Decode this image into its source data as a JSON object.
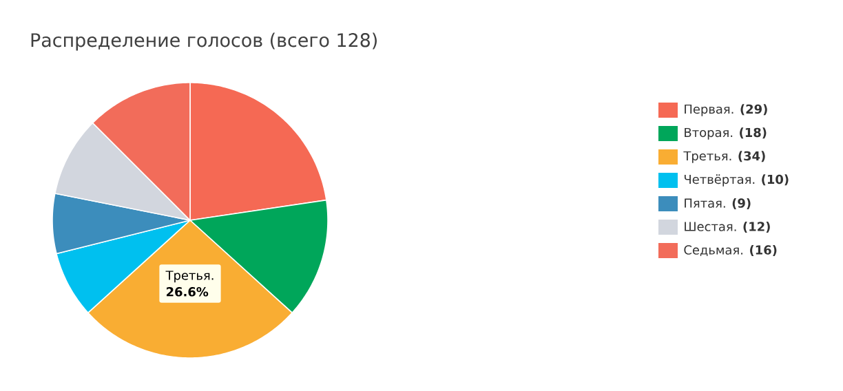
{
  "chart_data": {
    "type": "pie",
    "title": "Распределение голосов (всего 128)",
    "categories": [
      "Первая. **(29)**",
      "Вторая. **(18)**",
      "Третья. **(34)**",
      "Четвёртая. **(10)**",
      "Пятая. **(9)**",
      "Шестая. **(12)**",
      "Седьмая. **(16)**"
    ],
    "values": [
      29,
      18,
      34,
      10,
      9,
      12,
      16
    ],
    "colors": [
      "#f56954",
      "#00a65a",
      "#f9ad33",
      "#00c0ef",
      "#3c8dbc",
      "#d2d6de",
      "#f26c5a"
    ],
    "legend": "right",
    "annotations": [
      "Третья.",
      "**26.6%**"
    ]
  }
}
